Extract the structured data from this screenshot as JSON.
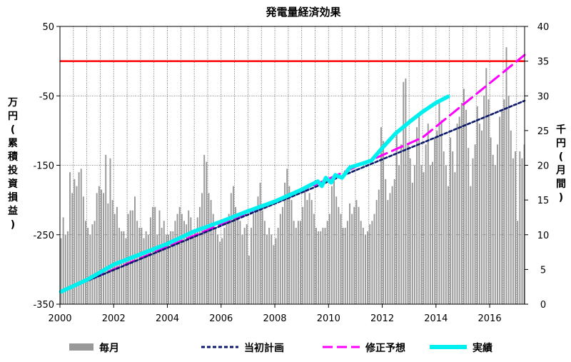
{
  "chart_data": {
    "type": "bar",
    "title": "発電量経済効果",
    "y_left_label": [
      "万",
      "円",
      "(",
      "累",
      "積",
      "投",
      "資",
      "損",
      "益",
      ")"
    ],
    "y_right_label": [
      "千",
      "円",
      "(",
      "月",
      "間",
      ")"
    ],
    "y_left_range": [
      -350,
      50
    ],
    "y_left_ticks": [
      50,
      -50,
      -150,
      -250,
      -350
    ],
    "y_right_range": [
      0,
      40
    ],
    "y_right_ticks": [
      40,
      35,
      30,
      25,
      20,
      15,
      10,
      5,
      0
    ],
    "x_range": [
      2000,
      2017.3
    ],
    "x_ticks": [
      2000,
      2002,
      2004,
      2006,
      2008,
      2010,
      2012,
      2014,
      2016
    ],
    "reference_line": {
      "value": 0,
      "axis": "left",
      "color": "#ff0000"
    },
    "colors": {
      "bars": "#999999",
      "plan": "#0d1a6b",
      "revised": "#ff00ff",
      "actual": "#00f0f0",
      "reference": "#ff0000"
    },
    "legend": [
      {
        "key": "bars",
        "label": "毎月",
        "style": "bar"
      },
      {
        "key": "plan",
        "label": "当初計画",
        "style": "dotted"
      },
      {
        "key": "revised",
        "label": "修正予想",
        "style": "dashed"
      },
      {
        "key": "actual",
        "label": "実績",
        "style": "solid"
      }
    ],
    "series": [
      {
        "name": "毎月",
        "axis": "right",
        "kind": "bar",
        "start": 2000.04,
        "step": 0.08333,
        "values": [
          9.5,
          12.5,
          10,
          10.5,
          19,
          16,
          18,
          17,
          19,
          19.5,
          15.5,
          12,
          11,
          10,
          11.5,
          12,
          16,
          17,
          16.5,
          16,
          21.5,
          14.5,
          21,
          15,
          13,
          14,
          11,
          10.5,
          10.5,
          9.5,
          13,
          13.5,
          13.5,
          15.5,
          12,
          11,
          11,
          9.5,
          10.5,
          10,
          12.5,
          14,
          14,
          10,
          13.5,
          11,
          12,
          10,
          10,
          10.5,
          10.5,
          12,
          13,
          14,
          13,
          12,
          11.5,
          13.5,
          12.5,
          10,
          10.5,
          12.5,
          14,
          16,
          21.5,
          20.5,
          16,
          15,
          13,
          11,
          10,
          9,
          9.5,
          11,
          12,
          13,
          16,
          17,
          14,
          13,
          12,
          10,
          11,
          11.5,
          7,
          11,
          13,
          14,
          15.5,
          17.5,
          13.5,
          12,
          10,
          11,
          10,
          8.5,
          9.5,
          11,
          13,
          14,
          17.5,
          19.5,
          17,
          15,
          12,
          11,
          12,
          12,
          14,
          16.5,
          15,
          16,
          15,
          13,
          11,
          10.5,
          10.5,
          11,
          11,
          12,
          13,
          17,
          18,
          15.5,
          14,
          13,
          11,
          11,
          12,
          14.5,
          13,
          14,
          15,
          14,
          12,
          11,
          10,
          10.5,
          11.5,
          12,
          13,
          15,
          16.5,
          25.5,
          23.5,
          18,
          15,
          16,
          17,
          18,
          25,
          20,
          23,
          32,
          32.5,
          23,
          21,
          17.5,
          20,
          25.5,
          27,
          20,
          19,
          23,
          26,
          20,
          20.5,
          24,
          25,
          29,
          26.5,
          22,
          20,
          17,
          24,
          22,
          19,
          26,
          27,
          29,
          31,
          28,
          22.5,
          17,
          21,
          23,
          28.5,
          26,
          25,
          30,
          34,
          29.5,
          24,
          21.5,
          20,
          23,
          27,
          28,
          29.5,
          37,
          30,
          25,
          21,
          22,
          12,
          22,
          21,
          23
        ]
      },
      {
        "name": "当初計画",
        "axis": "left",
        "kind": "line",
        "points": [
          [
            2000.04,
            -332
          ],
          [
            2017.3,
            -57
          ]
        ]
      },
      {
        "name": "修正予想",
        "axis": "left",
        "kind": "line",
        "points": [
          [
            2000.04,
            -332
          ],
          [
            2009.5,
            -178
          ],
          [
            2013.5,
            -110
          ],
          [
            2017.3,
            9
          ]
        ]
      },
      {
        "name": "実績",
        "axis": "left",
        "kind": "line",
        "points": [
          [
            2000.04,
            -332
          ],
          [
            2001,
            -315
          ],
          [
            2002,
            -293
          ],
          [
            2003,
            -278
          ],
          [
            2004,
            -263
          ],
          [
            2005,
            -245
          ],
          [
            2006,
            -231
          ],
          [
            2007,
            -216
          ],
          [
            2008,
            -202
          ],
          [
            2009,
            -185
          ],
          [
            2009.6,
            -173
          ],
          [
            2009.75,
            -180
          ],
          [
            2009.9,
            -168
          ],
          [
            2010.1,
            -175
          ],
          [
            2010.25,
            -164
          ],
          [
            2010.5,
            -168
          ],
          [
            2010.8,
            -153
          ],
          [
            2011.3,
            -147
          ],
          [
            2011.6,
            -143
          ],
          [
            2012,
            -125
          ],
          [
            2012.5,
            -104
          ],
          [
            2013,
            -88
          ],
          [
            2013.5,
            -73
          ],
          [
            2014,
            -60
          ],
          [
            2014.45,
            -51
          ]
        ]
      }
    ]
  }
}
